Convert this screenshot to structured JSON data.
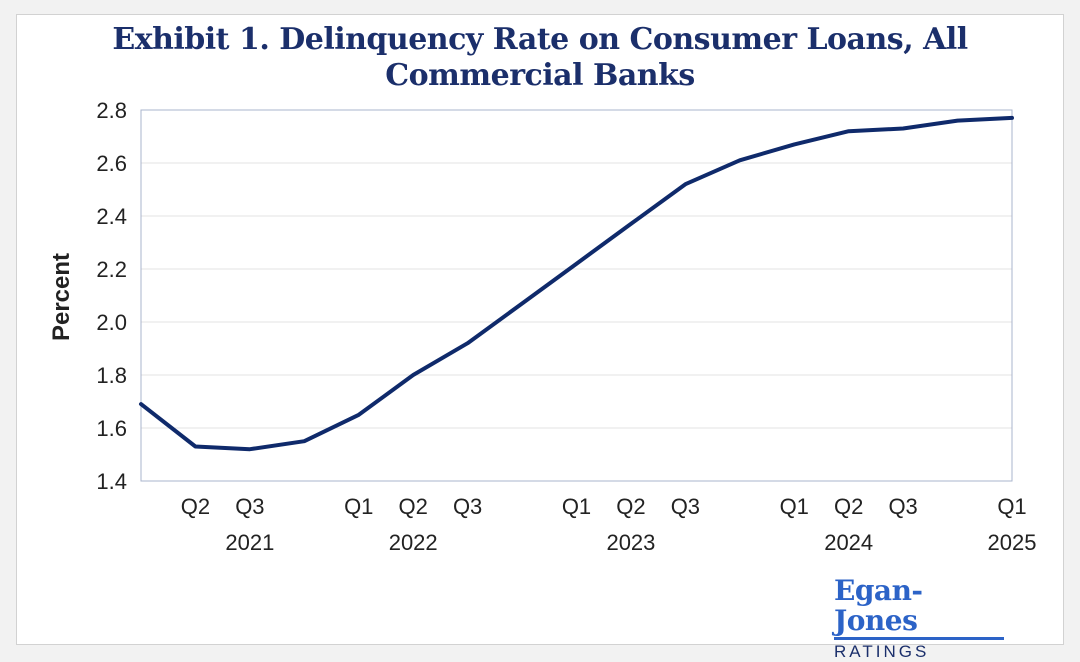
{
  "chart_data": {
    "type": "line",
    "title": "Exhibit 1. Delinquency Rate on Consumer Loans, All Commercial Banks",
    "title_lines": [
      "Exhibit 1. Delinquency Rate on Consumer Loans, All",
      "Commercial Banks"
    ],
    "xlabel": "",
    "ylabel": "Percent",
    "ylim": [
      1.4,
      2.8
    ],
    "yticks": [
      "1.4",
      "1.6",
      "1.8",
      "2.0",
      "2.2",
      "2.4",
      "2.6",
      "2.8"
    ],
    "grid": true,
    "legend": "none",
    "line_color": "#0f2a6b",
    "x": [
      "2021 Q1",
      "2021 Q2",
      "2021 Q3",
      "2021 Q4",
      "2022 Q1",
      "2022 Q2",
      "2022 Q3",
      "2022 Q4",
      "2023 Q1",
      "2023 Q2",
      "2023 Q3",
      "2023 Q4",
      "2024 Q1",
      "2024 Q2",
      "2024 Q3",
      "2024 Q4",
      "2025 Q1"
    ],
    "values": [
      1.69,
      1.53,
      1.52,
      1.55,
      1.65,
      1.8,
      1.92,
      2.07,
      2.22,
      2.37,
      2.52,
      2.61,
      2.67,
      2.72,
      2.73,
      2.76,
      2.77
    ],
    "quarter_labels": [
      "",
      "Q2",
      "Q3",
      "",
      "Q1",
      "Q2",
      "Q3",
      "",
      "Q1",
      "Q2",
      "Q3",
      "",
      "Q1",
      "Q2",
      "Q3",
      "",
      "Q1"
    ],
    "year_labels": [
      {
        "index": 2,
        "label": "2021"
      },
      {
        "index": 5,
        "label": "2022"
      },
      {
        "index": 9,
        "label": "2023"
      },
      {
        "index": 13,
        "label": "2024"
      },
      {
        "index": 16,
        "label": "2025"
      }
    ]
  },
  "logo": {
    "name": "Egan-Jones",
    "tagline": "RATINGS"
  }
}
